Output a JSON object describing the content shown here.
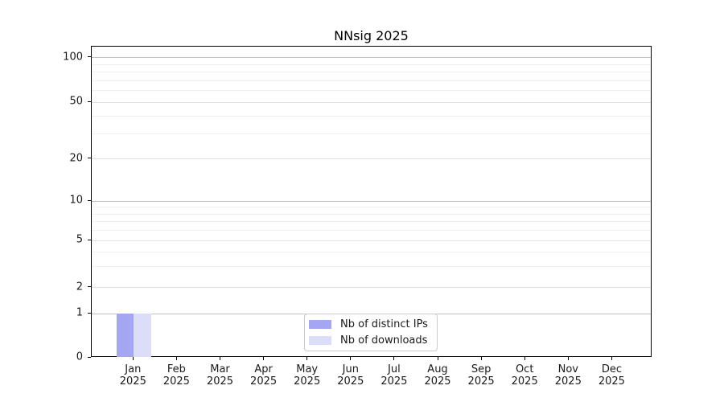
{
  "chart_data": {
    "type": "bar",
    "title": "NNsig 2025",
    "x_year": "2025",
    "categories": [
      "Jan",
      "Feb",
      "Mar",
      "Apr",
      "May",
      "Jun",
      "Jul",
      "Aug",
      "Sep",
      "Oct",
      "Nov",
      "Dec"
    ],
    "series": [
      {
        "key": "distinct-ips",
        "name": "Nb of distinct IPs",
        "color": "#a5a6f3",
        "values": [
          1,
          0,
          0,
          0,
          0,
          0,
          0,
          0,
          0,
          0,
          0,
          0
        ]
      },
      {
        "key": "downloads",
        "name": "Nb of downloads",
        "color": "#dbddf9",
        "values": [
          1,
          0,
          0,
          0,
          0,
          0,
          0,
          0,
          0,
          0,
          0,
          0
        ]
      }
    ],
    "yaxis": {
      "scale": "log-like",
      "ticks": [
        100,
        50,
        20,
        10,
        5,
        2,
        1,
        0
      ],
      "ylim": [
        0,
        100
      ]
    },
    "xlabel": "",
    "ylabel": "",
    "legend": {
      "position": "lower center",
      "entries": [
        "Nb of distinct IPs",
        "Nb of downloads"
      ]
    },
    "grid": true
  }
}
